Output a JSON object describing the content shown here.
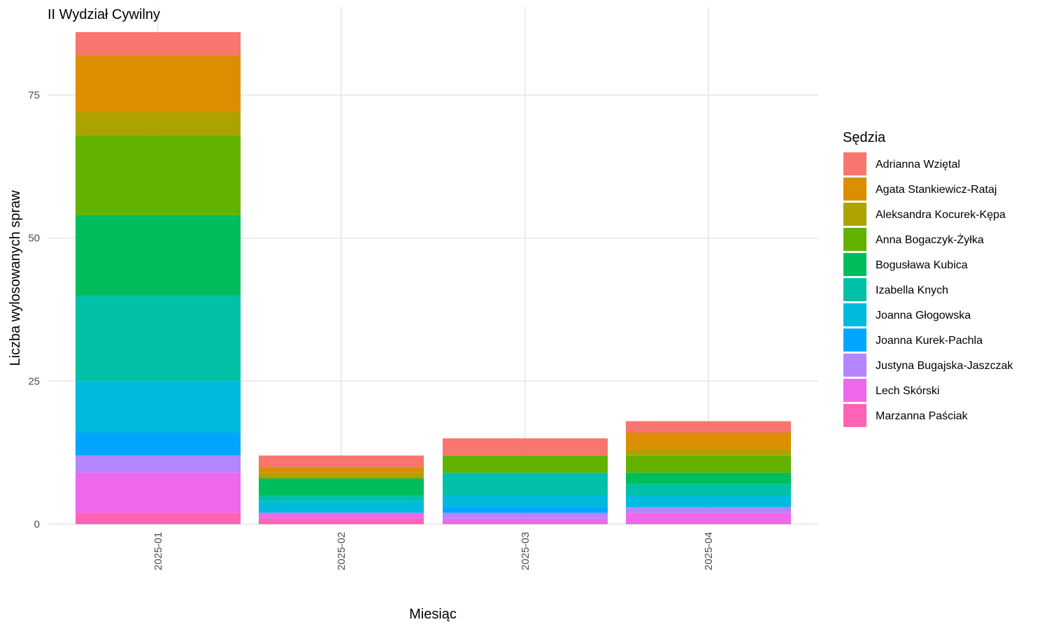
{
  "chart_data": {
    "type": "bar",
    "stacked": true,
    "title": "II Wydział Cywilny",
    "xlabel": "Miesiąc",
    "ylabel": "Liczba wylosowanych spraw",
    "categories": [
      "2025-01",
      "2025-02",
      "2025-03",
      "2025-04"
    ],
    "ylim": [
      0,
      87
    ],
    "yticks": [
      0,
      25,
      50,
      75
    ],
    "grid": true,
    "legend_title": "Sędzia",
    "legend_position": "right",
    "series": [
      {
        "name": "Adrianna Wziętal",
        "color": "#F8766D",
        "values": [
          4,
          2,
          3,
          2
        ]
      },
      {
        "name": "Agata Stankiewicz-Rataj",
        "color": "#DB8E00",
        "values": [
          10,
          1,
          0,
          3
        ]
      },
      {
        "name": "Aleksandra Kocurek-Kępa",
        "color": "#AEA200",
        "values": [
          4,
          1,
          0,
          1
        ]
      },
      {
        "name": "Anna Bogaczyk-Żyłka",
        "color": "#64B200",
        "values": [
          14,
          0,
          3,
          3
        ]
      },
      {
        "name": "Bogusława Kubica",
        "color": "#00BD5C",
        "values": [
          14,
          3,
          0,
          2
        ]
      },
      {
        "name": "Izabella Knych",
        "color": "#00C1A7",
        "values": [
          15,
          1,
          4,
          2
        ]
      },
      {
        "name": "Joanna Głogowska",
        "color": "#00BADE",
        "values": [
          9,
          2,
          2,
          2
        ]
      },
      {
        "name": "Joanna Kurek-Pachla",
        "color": "#00A6FF",
        "values": [
          4,
          0,
          1,
          0
        ]
      },
      {
        "name": "Justyna Bugajska-Jaszczak",
        "color": "#B385FF",
        "values": [
          3,
          0,
          1,
          1
        ]
      },
      {
        "name": "Lech Skórski",
        "color": "#EF67EB",
        "values": [
          7,
          1,
          1,
          2
        ]
      },
      {
        "name": "Marzanna Paściak",
        "color": "#FF63B6",
        "values": [
          2,
          1,
          0,
          0
        ]
      }
    ]
  }
}
